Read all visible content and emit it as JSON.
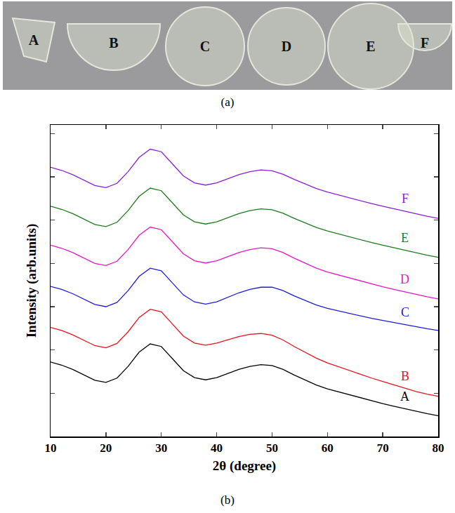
{
  "photo": {
    "labels": [
      "A",
      "B",
      "C",
      "D",
      "E",
      "F"
    ],
    "caption": "(a)"
  },
  "chart_caption": "(b)",
  "chart_data": {
    "type": "line",
    "x_label": "2θ (degree)",
    "y_label": "Intensity (arb.units)",
    "xlim": [
      10,
      80
    ],
    "xticks": [
      10,
      20,
      30,
      40,
      50,
      60,
      70,
      80
    ],
    "ylim": [
      0,
      7.2
    ],
    "yticks": [
      1,
      2,
      3,
      4,
      5,
      6,
      7
    ],
    "tick_labels": "x",
    "grid": false,
    "x": [
      10,
      12,
      14,
      16,
      18,
      20,
      22,
      24,
      26,
      28,
      30,
      32,
      34,
      36,
      38,
      40,
      42,
      44,
      46,
      48,
      50,
      52,
      54,
      56,
      58,
      60,
      62,
      64,
      66,
      68,
      70,
      72,
      74,
      76,
      78,
      80
    ],
    "series": [
      {
        "name": "A",
        "color": "#000000",
        "values": [
          1.72,
          1.65,
          1.55,
          1.42,
          1.3,
          1.25,
          1.35,
          1.62,
          1.95,
          2.14,
          2.08,
          1.8,
          1.52,
          1.36,
          1.31,
          1.36,
          1.45,
          1.55,
          1.62,
          1.66,
          1.64,
          1.55,
          1.42,
          1.3,
          1.19,
          1.1,
          1.03,
          0.96,
          0.89,
          0.82,
          0.76,
          0.7,
          0.64,
          0.58,
          0.53,
          0.48
        ]
      },
      {
        "name": "B",
        "color": "#e8141c",
        "values": [
          2.52,
          2.45,
          2.35,
          2.22,
          2.1,
          2.05,
          2.15,
          2.42,
          2.75,
          2.94,
          2.88,
          2.6,
          2.32,
          2.16,
          2.11,
          2.16,
          2.23,
          2.31,
          2.36,
          2.38,
          2.34,
          2.23,
          2.08,
          1.94,
          1.81,
          1.7,
          1.61,
          1.52,
          1.43,
          1.35,
          1.27,
          1.19,
          1.11,
          1.04,
          0.98,
          0.93
        ]
      },
      {
        "name": "C",
        "color": "#1d1dd6",
        "values": [
          3.47,
          3.4,
          3.3,
          3.17,
          3.05,
          3.0,
          3.1,
          3.37,
          3.7,
          3.89,
          3.83,
          3.55,
          3.27,
          3.11,
          3.06,
          3.11,
          3.21,
          3.32,
          3.4,
          3.45,
          3.45,
          3.37,
          3.25,
          3.14,
          3.04,
          2.96,
          2.9,
          2.84,
          2.78,
          2.73,
          2.68,
          2.63,
          2.58,
          2.53,
          2.49,
          2.45
        ]
      },
      {
        "name": "D",
        "color": "#e617c8",
        "values": [
          4.42,
          4.35,
          4.25,
          4.12,
          4.0,
          3.95,
          4.05,
          4.32,
          4.65,
          4.84,
          4.78,
          4.5,
          4.22,
          4.06,
          4.01,
          4.06,
          4.15,
          4.25,
          4.32,
          4.36,
          4.34,
          4.25,
          4.12,
          4.0,
          3.89,
          3.8,
          3.73,
          3.66,
          3.59,
          3.52,
          3.46,
          3.4,
          3.34,
          3.28,
          3.23,
          3.18
        ]
      },
      {
        "name": "E",
        "color": "#1b7d1b",
        "values": [
          5.32,
          5.25,
          5.15,
          5.02,
          4.9,
          4.85,
          4.95,
          5.22,
          5.55,
          5.74,
          5.68,
          5.4,
          5.12,
          4.96,
          4.91,
          4.96,
          5.05,
          5.15,
          5.22,
          5.26,
          5.24,
          5.16,
          5.04,
          4.93,
          4.83,
          4.75,
          4.68,
          4.61,
          4.54,
          4.48,
          4.42,
          4.36,
          4.3,
          4.24,
          4.19,
          4.14
        ]
      },
      {
        "name": "F",
        "color": "#8a1fd6",
        "values": [
          6.22,
          6.15,
          6.05,
          5.92,
          5.8,
          5.75,
          5.85,
          6.12,
          6.45,
          6.64,
          6.58,
          6.3,
          6.02,
          5.86,
          5.81,
          5.86,
          5.95,
          6.05,
          6.12,
          6.16,
          6.14,
          6.06,
          5.94,
          5.83,
          5.73,
          5.65,
          5.58,
          5.51,
          5.44,
          5.38,
          5.32,
          5.26,
          5.2,
          5.14,
          5.09,
          5.04
        ]
      }
    ]
  }
}
